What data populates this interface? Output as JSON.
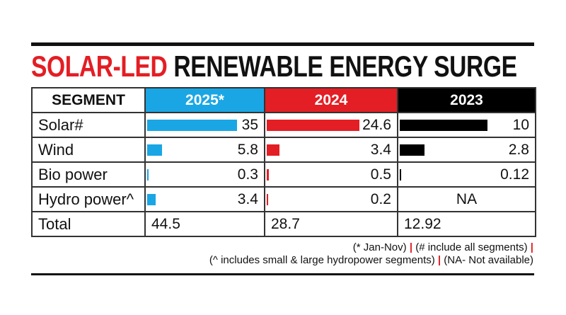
{
  "title": {
    "part1": "SOLAR-LED",
    "part2": "RENEWABLE ENERGY SURGE"
  },
  "chart_data": {
    "type": "table",
    "headers": [
      "SEGMENT",
      "2025*",
      "2024",
      "2023"
    ],
    "header_colors": [
      "#ffffff",
      "#1aa6e4",
      "#e31e24",
      "#000000"
    ],
    "rows": [
      {
        "label": "Solar#",
        "values": [
          "35",
          "24.6",
          "10"
        ]
      },
      {
        "label": "Wind",
        "values": [
          "5.8",
          "3.4",
          "2.8"
        ]
      },
      {
        "label": "Bio power",
        "values": [
          "0.3",
          "0.5",
          "0.12"
        ]
      },
      {
        "label": "Hydro power^",
        "values": [
          "3.4",
          "0.2",
          "NA"
        ]
      }
    ],
    "total": {
      "label": "Total",
      "values": [
        "44.5",
        "28.7",
        "12.92"
      ]
    }
  },
  "footnotes": {
    "line1": [
      "(* Jan-Nov)",
      "(# include all segments)"
    ],
    "line2": [
      "(^ includes small & large hydropower segments)",
      "(NA- Not available)"
    ],
    "separator": "|"
  }
}
